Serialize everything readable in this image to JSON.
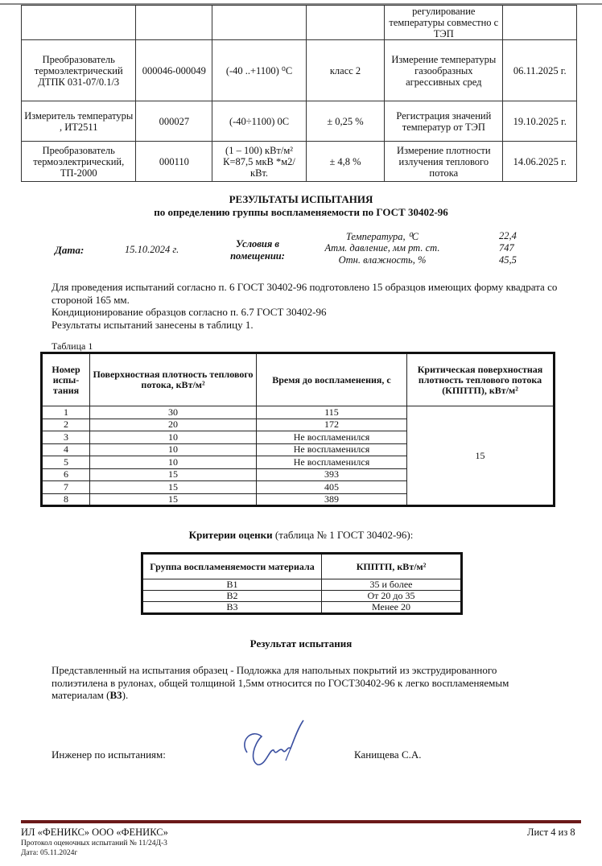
{
  "equipment_table": {
    "rows": [
      [
        "",
        "",
        "",
        "",
        "регулирование температуры совместно с ТЭП",
        ""
      ],
      [
        "Преобразователь термоэлектрический ДТПК 031-07/0.1/3",
        "000046-000049",
        "(-40 ..+1100) ⁰С",
        "класс 2",
        "Измерение температуры газообразных агрессивных сред",
        "06.11.2025 г."
      ],
      [
        "Измеритель температуры , ИТ2511",
        "000027",
        "(-40÷1100) 0С",
        "± 0,25 %",
        "Регистрация значений температур от ТЭП",
        "19.10.2025 г."
      ],
      [
        "Преобразователь термоэлектрический, ТП-2000",
        "000110",
        "(1 – 100) кВт/м² К=87,5 мкВ *м2/кВт.",
        "± 4,8 %",
        "Измерение плотности излучения теплового потока",
        "14.06.2025 г."
      ]
    ]
  },
  "results": {
    "title": "РЕЗУЛЬТАТЫ ИСПЫТАНИЯ",
    "subtitle": "по определению группы воспламеняемости по ГОСТ 30402-96"
  },
  "conditions": {
    "date_label": "Дата:",
    "date": "15.10.2024 г.",
    "room_label": "Условия в помещении:",
    "items": [
      {
        "label": "Температура, ⁰С",
        "value": "22,4"
      },
      {
        "label": "Атм. давление, мм  рт. ст.",
        "value": "747"
      },
      {
        "label": "Отн. влажность, %",
        "value": "45,5"
      }
    ]
  },
  "paragraphs": [
    "Для проведения испытаний согласно п. 6 ГОСТ 30402-96 подготовлено 15 образцов имеющих форму квадрата со стороной 165 мм.",
    "Кондиционирование образцов согласно п. 6.7 ГОСТ 30402-96",
    "Результаты испытаний занесены в таблицу 1."
  ],
  "table1": {
    "caption": "Таблица 1",
    "headers": [
      "Номер испы-тания",
      "Поверхностная плотность теплового потока, кВт/м²",
      "Время до воспламенения, с",
      "Критическая поверхностная плотность теплового потока (КППТП), кВт/м²"
    ],
    "rows": [
      [
        "1",
        "30",
        "115"
      ],
      [
        "2",
        "20",
        "172"
      ],
      [
        "3",
        "10",
        "Не воспламенился"
      ],
      [
        "4",
        "10",
        "Не воспламенился"
      ],
      [
        "5",
        "10",
        "Не воспламенился"
      ],
      [
        "6",
        "15",
        "393"
      ],
      [
        "7",
        "15",
        "405"
      ],
      [
        "8",
        "15",
        "389"
      ]
    ],
    "kpptp": "15"
  },
  "criteria": {
    "title_bold": "Критерии оценки",
    "title_rest": " (таблица № 1 ГОСТ 30402-96):",
    "headers": [
      "Группа воспламеняемости материала",
      "КППТП, кВт/м²"
    ],
    "rows": [
      [
        "В1",
        "35 и более"
      ],
      [
        "В2",
        "От 20 до 35"
      ],
      [
        "В3",
        "Менее 20"
      ]
    ]
  },
  "result": {
    "title": "Результат испытания",
    "text": "Представленный на испытания образец - Подложка для напольных покрытий из экструдированного полиэтилена в рулонах, общей толщиной 1,5мм относится по  ГОСТ30402-96 к легко воспламеняемым материалам (",
    "bold": "В3",
    "end": ")."
  },
  "signature": {
    "role": "Инженер по испытаниям:",
    "name": "Канищева С.А."
  },
  "footer": {
    "org": "ИЛ «ФЕНИКС» ООО «ФЕНИКС»",
    "protocol": "Протокол оценочных испытаний № 11/24Д-3",
    "date": "Дата: 05.11.2024г",
    "sheet": "Лист 4 из 8"
  }
}
